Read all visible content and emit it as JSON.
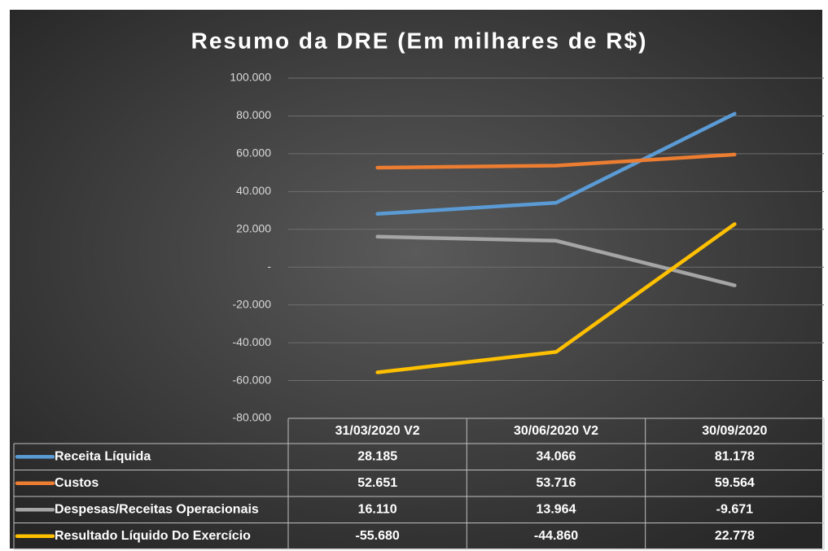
{
  "chart_data": {
    "type": "line",
    "title": "Resumo da DRE (Em milhares de R$)",
    "categories": [
      "31/03/2020 V2",
      "30/06/2020 V2",
      "30/09/2020"
    ],
    "series": [
      {
        "name": "Receita Líquida",
        "color": "#5b9bd5",
        "values": [
          28185,
          34066,
          81178
        ],
        "value_labels": [
          "28.185",
          "34.066",
          "81.178"
        ]
      },
      {
        "name": "Custos",
        "color": "#ed7d31",
        "values": [
          52651,
          53716,
          59564
        ],
        "value_labels": [
          "52.651",
          "53.716",
          "59.564"
        ]
      },
      {
        "name": "Despesas/Receitas Operacionais",
        "color": "#a5a5a5",
        "values": [
          16110,
          13964,
          -9671
        ],
        "value_labels": [
          "16.110",
          "13.964",
          "-9.671"
        ]
      },
      {
        "name": "Resultado Líquido Do Exercício",
        "color": "#ffc000",
        "values": [
          -55680,
          -44860,
          22778
        ],
        "value_labels": [
          "-55.680",
          "-44.860",
          "22.778"
        ]
      }
    ],
    "ylim": [
      -80000,
      100000
    ],
    "yticks": [
      {
        "value": -80000,
        "label": "-80.000"
      },
      {
        "value": -60000,
        "label": "-60.000"
      },
      {
        "value": -40000,
        "label": "-40.000"
      },
      {
        "value": -20000,
        "label": "-20.000"
      },
      {
        "value": 0,
        "label": "-"
      },
      {
        "value": 20000,
        "label": "20.000"
      },
      {
        "value": 40000,
        "label": "40.000"
      },
      {
        "value": 60000,
        "label": "60.000"
      },
      {
        "value": 80000,
        "label": "80.000"
      },
      {
        "value": 100000,
        "label": "100.000"
      }
    ],
    "grid": true
  }
}
